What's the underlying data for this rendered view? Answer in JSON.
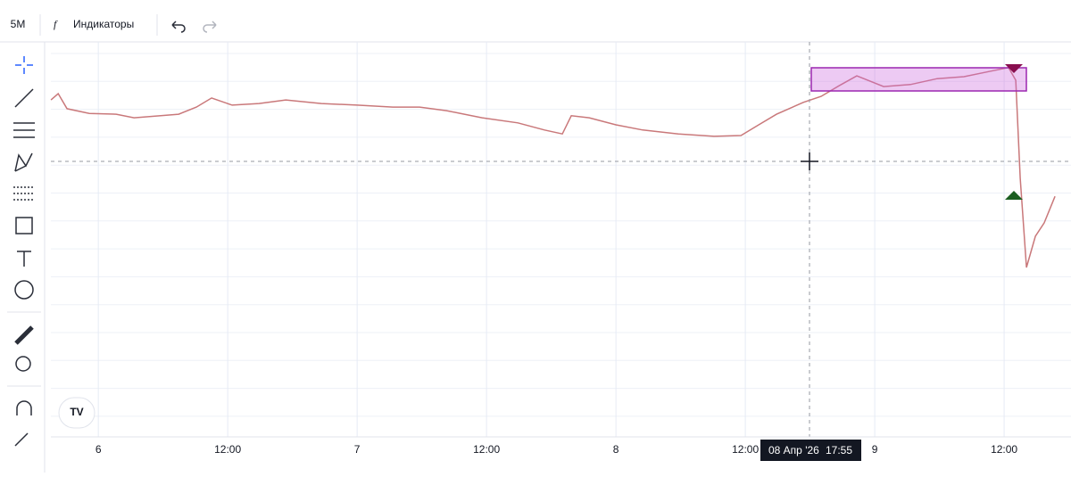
{
  "toolbar": {
    "interval": "5M",
    "indicators": "Индикаторы"
  },
  "crosshair": {
    "date": "08 Апр '26",
    "time": "17:55"
  },
  "chart_data": {
    "type": "line",
    "color": "#c9787a",
    "x": [
      -4.39,
      -3.72,
      -2.9,
      -0.83,
      1.66,
      3.31,
      5.79,
      7.45,
      9.1,
      10.51,
      12.41,
      14.9,
      17.38,
      20.69,
      24.0,
      27.31,
      29.79,
      32.28,
      35.59,
      38.9,
      41.38,
      43.03,
      43.86,
      45.52,
      48.0,
      50.48,
      53.79,
      57.1,
      59.59,
      61.24,
      62.9,
      65.38,
      67.03,
      68.69,
      70.34,
      72.83,
      75.31,
      77.79,
      80.28,
      82.76,
      84.41,
      85.08,
      85.49,
      86.07,
      86.9,
      87.72,
      88.72
    ],
    "values": [
      85.3,
      86.9,
      83.1,
      81.9,
      81.7,
      80.8,
      81.3,
      81.7,
      83.5,
      85.8,
      84.0,
      84.4,
      85.3,
      84.4,
      84.0,
      83.5,
      83.5,
      82.6,
      80.8,
      79.5,
      77.7,
      76.7,
      81.3,
      80.8,
      79.0,
      77.7,
      76.7,
      76.1,
      76.3,
      79.0,
      81.7,
      84.7,
      86.2,
      88.9,
      91.4,
      88.7,
      89.2,
      90.7,
      91.2,
      92.6,
      93.5,
      90.3,
      65.5,
      42.9,
      50.8,
      54.2,
      60.9
    ],
    "xlim": [
      -4.4,
      90.2
    ],
    "ylim": [
      0,
      100
    ],
    "xticks": [
      {
        "value": 0,
        "label": "6"
      },
      {
        "value": 12,
        "label": "12:00"
      },
      {
        "value": 24,
        "label": "7"
      },
      {
        "value": 36,
        "label": "12:00"
      },
      {
        "value": 48,
        "label": "8"
      },
      {
        "value": 60,
        "label": "12:00"
      },
      {
        "value": 72,
        "label": "9"
      },
      {
        "value": 84,
        "label": "12:00"
      }
    ],
    "grid": true
  }
}
